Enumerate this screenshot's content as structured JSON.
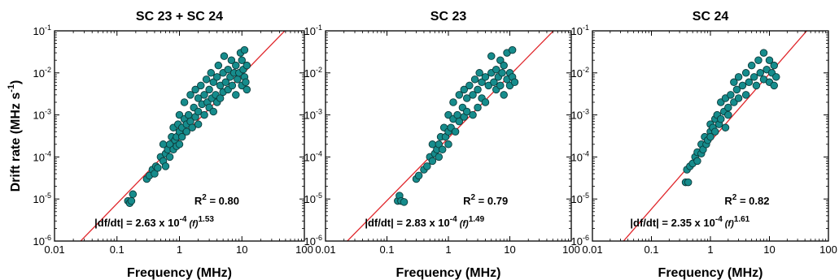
{
  "chart_data": [
    {
      "type": "scatter",
      "title": "SC 23 + SC 24",
      "xlabel": "Frequency (MHz)",
      "ylabel_main": "Drift rate (MHz s",
      "ylabel_sup": "-1",
      "ylabel_close": ")",
      "xscale": "log",
      "yscale": "log",
      "xlim": [
        0.01,
        100
      ],
      "ylim": [
        1e-06,
        0.1
      ],
      "xticks": [
        "0.01",
        "0.1",
        "1",
        "10",
        "100"
      ],
      "yticks": [
        {
          "base": "10",
          "exp": "-6"
        },
        {
          "base": "10",
          "exp": "-5"
        },
        {
          "base": "10",
          "exp": "-4"
        },
        {
          "base": "10",
          "exp": "-3"
        },
        {
          "base": "10",
          "exp": "-2"
        },
        {
          "base": "10",
          "exp": "-1"
        }
      ],
      "fit": {
        "coef": 0.000263,
        "exp": 1.53
      },
      "r2_label": "R",
      "r2_sup": "2",
      "r2_value": " = 0.80",
      "eq_lhs": "|df/dt| = 2.63 x 10",
      "eq_sup": "-4",
      "eq_var": "(f)",
      "eq_exp": "1.53",
      "points": [
        [
          0.15,
          9e-06
        ],
        [
          0.16,
          8e-06
        ],
        [
          0.17,
          9e-06
        ],
        [
          0.18,
          1.3e-05
        ],
        [
          0.3,
          3e-05
        ],
        [
          0.33,
          3.6e-05
        ],
        [
          0.37,
          5e-05
        ],
        [
          0.4,
          4e-05
        ],
        [
          0.42,
          6e-05
        ],
        [
          0.45,
          5.5e-05
        ],
        [
          0.5,
          0.0001
        ],
        [
          0.55,
          8e-05
        ],
        [
          0.55,
          0.0002
        ],
        [
          0.6,
          0.00012
        ],
        [
          0.6,
          6e-05
        ],
        [
          0.65,
          0.00015
        ],
        [
          0.7,
          0.0002
        ],
        [
          0.7,
          0.0001
        ],
        [
          0.75,
          0.0003
        ],
        [
          0.8,
          0.00015
        ],
        [
          0.8,
          0.0005
        ],
        [
          0.85,
          0.00025
        ],
        [
          0.9,
          0.0003
        ],
        [
          0.9,
          0.00018
        ],
        [
          0.95,
          0.0006
        ],
        [
          1.0,
          0.0004
        ],
        [
          1.0,
          0.0002
        ],
        [
          1.0,
          0.001
        ],
        [
          1.1,
          0.0005
        ],
        [
          1.1,
          0.0003
        ],
        [
          1.2,
          0.0008
        ],
        [
          1.2,
          0.002
        ],
        [
          1.3,
          0.0004
        ],
        [
          1.3,
          0.0006
        ],
        [
          1.4,
          0.001
        ],
        [
          1.5,
          0.003
        ],
        [
          1.5,
          0.0007
        ],
        [
          1.6,
          0.0005
        ],
        [
          1.7,
          0.0015
        ],
        [
          1.8,
          0.0009
        ],
        [
          1.8,
          0.004
        ],
        [
          2.0,
          0.0012
        ],
        [
          2.0,
          0.0025
        ],
        [
          2.0,
          0.0006
        ],
        [
          2.2,
          0.005
        ],
        [
          2.3,
          0.0018
        ],
        [
          2.5,
          0.001
        ],
        [
          2.5,
          0.003
        ],
        [
          2.7,
          0.007
        ],
        [
          2.8,
          0.002
        ],
        [
          3.0,
          0.0015
        ],
        [
          3.0,
          0.004
        ],
        [
          3.2,
          0.01
        ],
        [
          3.3,
          0.0025
        ],
        [
          3.5,
          0.006
        ],
        [
          3.5,
          0.0012
        ],
        [
          3.8,
          0.003
        ],
        [
          4.0,
          0.008
        ],
        [
          4.0,
          0.002
        ],
        [
          4.2,
          0.015
        ],
        [
          4.5,
          0.005
        ],
        [
          4.5,
          0.0025
        ],
        [
          5.0,
          0.01
        ],
        [
          5.0,
          0.0035
        ],
        [
          5.2,
          0.025
        ],
        [
          5.5,
          0.006
        ],
        [
          6.0,
          0.004
        ],
        [
          6.0,
          0.012
        ],
        [
          6.5,
          0.008
        ],
        [
          6.8,
          0.02
        ],
        [
          7.0,
          0.005
        ],
        [
          7.5,
          0.01
        ],
        [
          8.0,
          0.003
        ],
        [
          8.0,
          0.015
        ],
        [
          8.5,
          0.007
        ],
        [
          9.0,
          0.01
        ],
        [
          9.5,
          0.03
        ],
        [
          10.0,
          0.005
        ],
        [
          10.0,
          0.02
        ],
        [
          10.5,
          0.012
        ],
        [
          11.0,
          0.008
        ],
        [
          11.0,
          0.035
        ],
        [
          11.5,
          0.006
        ],
        [
          12.0,
          0.015
        ],
        [
          12.0,
          0.004
        ]
      ]
    },
    {
      "type": "scatter",
      "title": "SC 23",
      "xlabel": "Frequency (MHz)",
      "xscale": "log",
      "yscale": "log",
      "xlim": [
        0.01,
        100
      ],
      "ylim": [
        1e-06,
        0.1
      ],
      "xticks": [
        "0.01",
        "0.1",
        "1",
        "10",
        "100"
      ],
      "yticks": [
        {
          "base": "10",
          "exp": "-6"
        },
        {
          "base": "10",
          "exp": "-5"
        },
        {
          "base": "10",
          "exp": "-4"
        },
        {
          "base": "10",
          "exp": "-3"
        },
        {
          "base": "10",
          "exp": "-2"
        },
        {
          "base": "10",
          "exp": "-1"
        }
      ],
      "fit": {
        "coef": 0.000283,
        "exp": 1.49
      },
      "r2_label": "R",
      "r2_sup": "2",
      "r2_value": " = 0.79",
      "eq_lhs": "|df/dt| = 2.83 x 10",
      "eq_sup": "-4",
      "eq_var": "(f)",
      "eq_exp": "1.49",
      "points": [
        [
          0.15,
          9e-06
        ],
        [
          0.16,
          1.2e-05
        ],
        [
          0.17,
          9e-06
        ],
        [
          0.19,
          8.5e-06
        ],
        [
          0.3,
          3e-05
        ],
        [
          0.33,
          3.6e-05
        ],
        [
          0.4,
          5e-05
        ],
        [
          0.45,
          6e-05
        ],
        [
          0.5,
          0.0001
        ],
        [
          0.55,
          8e-05
        ],
        [
          0.55,
          0.0002
        ],
        [
          0.6,
          0.00012
        ],
        [
          0.65,
          0.00015
        ],
        [
          0.7,
          0.0002
        ],
        [
          0.7,
          0.0001
        ],
        [
          0.75,
          0.0003
        ],
        [
          0.8,
          0.00015
        ],
        [
          0.85,
          0.0005
        ],
        [
          0.9,
          0.0003
        ],
        [
          1.0,
          0.0004
        ],
        [
          1.0,
          0.001
        ],
        [
          1.0,
          0.0002
        ],
        [
          1.1,
          0.0005
        ],
        [
          1.2,
          0.0008
        ],
        [
          1.2,
          0.002
        ],
        [
          1.3,
          0.0004
        ],
        [
          1.4,
          0.001
        ],
        [
          1.5,
          0.003
        ],
        [
          1.5,
          0.0007
        ],
        [
          1.7,
          0.0015
        ],
        [
          1.8,
          0.004
        ],
        [
          1.8,
          0.0009
        ],
        [
          2.0,
          0.0012
        ],
        [
          2.0,
          0.0025
        ],
        [
          2.2,
          0.005
        ],
        [
          2.5,
          0.001
        ],
        [
          2.5,
          0.003
        ],
        [
          2.7,
          0.007
        ],
        [
          3.0,
          0.0015
        ],
        [
          3.0,
          0.004
        ],
        [
          3.2,
          0.01
        ],
        [
          3.5,
          0.006
        ],
        [
          3.5,
          0.0025
        ],
        [
          4.0,
          0.008
        ],
        [
          4.0,
          0.002
        ],
        [
          4.5,
          0.005
        ],
        [
          5.0,
          0.01
        ],
        [
          5.0,
          0.025
        ],
        [
          5.5,
          0.006
        ],
        [
          6.0,
          0.004
        ],
        [
          6.0,
          0.012
        ],
        [
          6.5,
          0.008
        ],
        [
          7.0,
          0.005
        ],
        [
          7.0,
          0.02
        ],
        [
          7.5,
          0.01
        ],
        [
          8.0,
          0.003
        ],
        [
          8.0,
          0.015
        ],
        [
          9.0,
          0.007
        ],
        [
          9.0,
          0.03
        ],
        [
          10.0,
          0.005
        ],
        [
          10.0,
          0.01
        ],
        [
          11.0,
          0.035
        ],
        [
          11.0,
          0.008
        ],
        [
          12.0,
          0.006
        ]
      ]
    },
    {
      "type": "scatter",
      "title": "SC 24",
      "xlabel": "Frequency (MHz)",
      "xscale": "log",
      "yscale": "log",
      "xlim": [
        0.01,
        100
      ],
      "ylim": [
        1e-06,
        0.1
      ],
      "xticks": [
        "0.01",
        "0.1",
        "1",
        "10",
        "100"
      ],
      "yticks": [
        {
          "base": "10",
          "exp": "-6"
        },
        {
          "base": "10",
          "exp": "-5"
        },
        {
          "base": "10",
          "exp": "-4"
        },
        {
          "base": "10",
          "exp": "-3"
        },
        {
          "base": "10",
          "exp": "-2"
        },
        {
          "base": "10",
          "exp": "-1"
        }
      ],
      "fit": {
        "coef": 0.000235,
        "exp": 1.61
      },
      "r2_label": "R",
      "r2_sup": "2",
      "r2_value": " = 0.82",
      "eq_lhs": "|df/dt| = 2.35 x 10",
      "eq_sup": "-4",
      "eq_var": "(f)",
      "eq_exp": "1.61",
      "points": [
        [
          0.38,
          2.5e-05
        ],
        [
          0.42,
          2.5e-05
        ],
        [
          0.4,
          5e-05
        ],
        [
          0.45,
          6e-05
        ],
        [
          0.5,
          7e-05
        ],
        [
          0.55,
          0.0001
        ],
        [
          0.6,
          8e-05
        ],
        [
          0.6,
          0.00013
        ],
        [
          0.7,
          0.00012
        ],
        [
          0.7,
          0.0002
        ],
        [
          0.75,
          0.00015
        ],
        [
          0.8,
          0.0003
        ],
        [
          0.85,
          0.0002
        ],
        [
          0.9,
          0.00025
        ],
        [
          1.0,
          0.0004
        ],
        [
          1.0,
          0.0003
        ],
        [
          1.0,
          0.0006
        ],
        [
          1.1,
          0.0005
        ],
        [
          1.2,
          0.0004
        ],
        [
          1.2,
          0.0008
        ],
        [
          1.3,
          0.001
        ],
        [
          1.4,
          0.0006
        ],
        [
          1.5,
          0.002
        ],
        [
          1.5,
          0.0008
        ],
        [
          1.7,
          0.0012
        ],
        [
          1.8,
          0.0005
        ],
        [
          1.8,
          0.0025
        ],
        [
          2.0,
          0.0015
        ],
        [
          2.0,
          0.001
        ],
        [
          2.2,
          0.003
        ],
        [
          2.5,
          0.002
        ],
        [
          2.5,
          0.006
        ],
        [
          2.8,
          0.004
        ],
        [
          3.0,
          0.0025
        ],
        [
          3.0,
          0.008
        ],
        [
          3.5,
          0.005
        ],
        [
          4.0,
          0.01
        ],
        [
          4.0,
          0.003
        ],
        [
          4.5,
          0.006
        ],
        [
          5.0,
          0.015
        ],
        [
          5.5,
          0.008
        ],
        [
          6.0,
          0.005
        ],
        [
          6.5,
          0.02
        ],
        [
          7.0,
          0.01
        ],
        [
          8.0,
          0.007
        ],
        [
          8.0,
          0.03
        ],
        [
          9.0,
          0.012
        ],
        [
          10.0,
          0.006
        ],
        [
          10.0,
          0.02
        ],
        [
          11.0,
          0.01
        ],
        [
          12.0,
          0.005
        ],
        [
          12.0,
          0.015
        ],
        [
          13.0,
          0.008
        ]
      ]
    }
  ]
}
